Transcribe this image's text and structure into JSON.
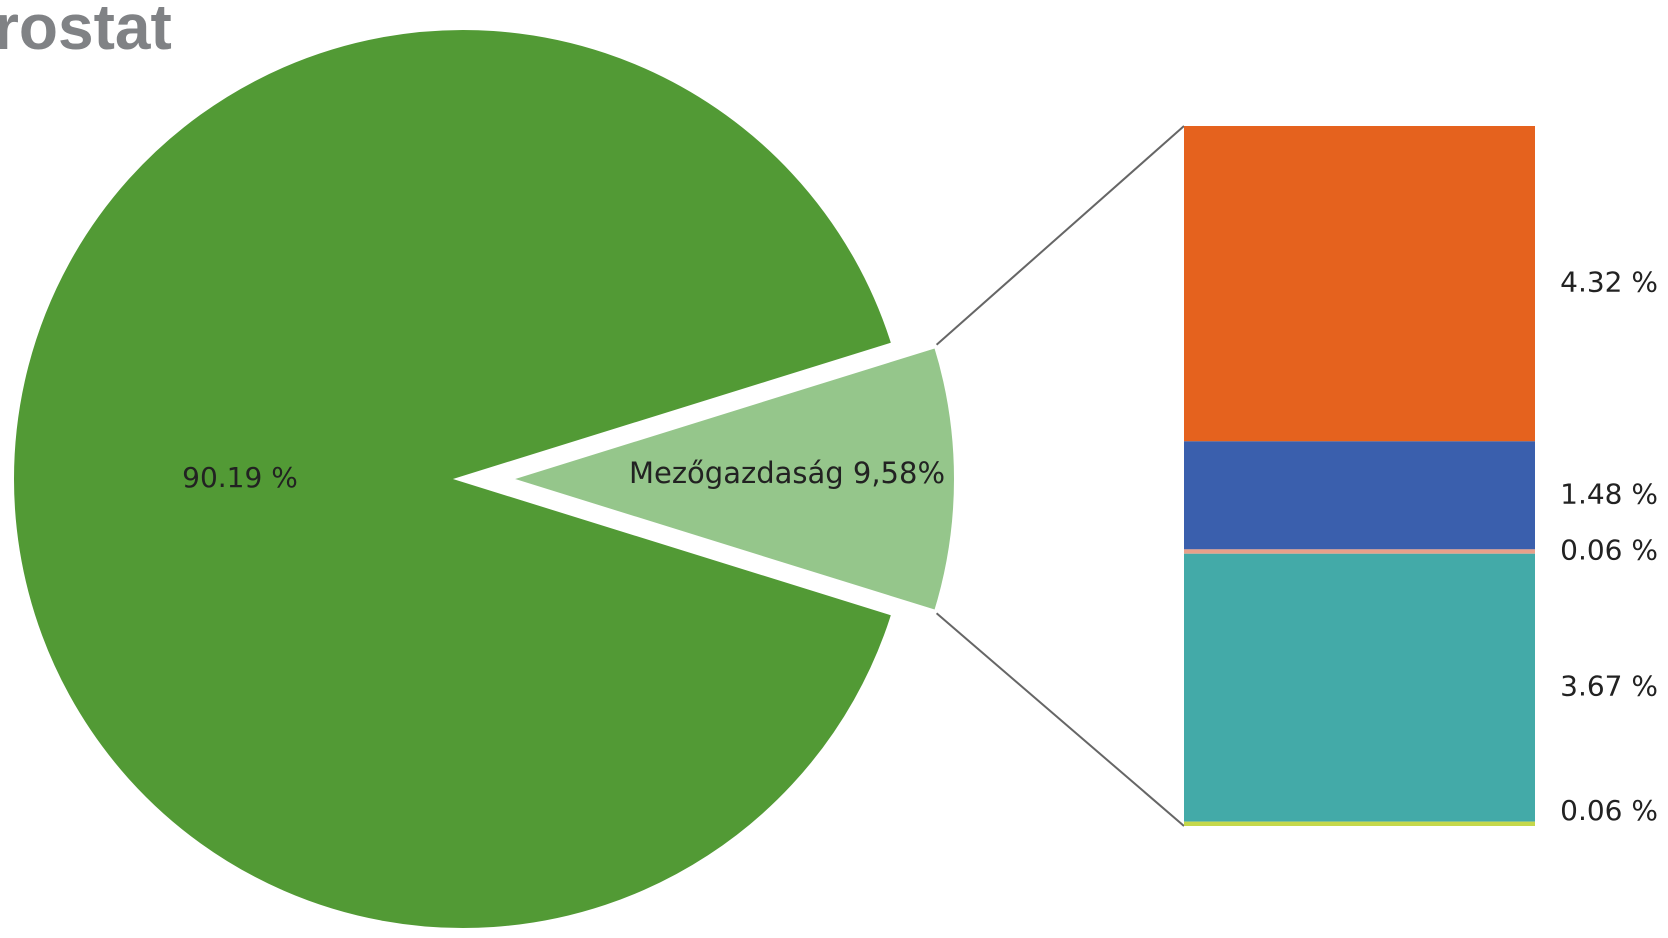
{
  "chart_data": {
    "type": "pie",
    "logo": "rostat",
    "values": [
      90.19,
      9.58
    ],
    "value_labels": [
      "90.19 %",
      "Mezőgazdaság 9,58%"
    ],
    "colors": [
      "#529a35",
      "#95c68b"
    ],
    "bar": {
      "values": [
        4.32,
        1.48,
        0.06,
        3.67,
        0.06
      ],
      "value_labels": [
        "4.32 %",
        "1.48 %",
        "0.06 %",
        "3.67 %",
        "0.06 %"
      ],
      "colors": [
        "#e5621e",
        "#3a5fad",
        "#e8a08a",
        "#43aaa8",
        "#c5d84a"
      ]
    }
  }
}
